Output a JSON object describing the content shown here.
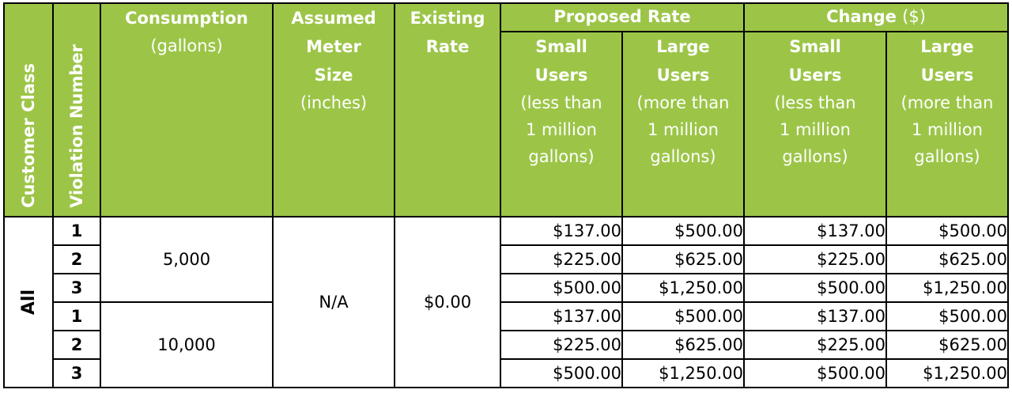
{
  "header": {
    "customer_class": "Customer Class",
    "violation_number": "Violation Number",
    "consumption": "Consumption",
    "consumption_unit": "(gallons)",
    "meter_size_line1": "Assumed",
    "meter_size_line2": "Meter",
    "meter_size_line3": "Size",
    "meter_size_unit": "(inches)",
    "existing_rate_line1": "Existing",
    "existing_rate_line2": "Rate",
    "proposed_rate": "Proposed Rate",
    "change_label": "Change",
    "change_unit": "($)",
    "small_users_line1": "Small",
    "small_users_line2": "Users",
    "small_users_desc1": "(less than",
    "small_users_desc2": "1 million",
    "small_users_desc3": "gallons)",
    "large_users_line1": "Large",
    "large_users_line2": "Users",
    "large_users_desc1": "(more than",
    "large_users_desc2": "1 million",
    "large_users_desc3": "gallons)"
  },
  "body": {
    "customer_class": "All",
    "meter_size": "N/A",
    "existing_rate": "$0.00",
    "groups": [
      {
        "consumption": "5,000",
        "rows": [
          {
            "violation": "1",
            "proposed_small": "$137.00",
            "proposed_large": "$500.00",
            "change_small": "$137.00",
            "change_large": "$500.00"
          },
          {
            "violation": "2",
            "proposed_small": "$225.00",
            "proposed_large": "$625.00",
            "change_small": "$225.00",
            "change_large": "$625.00"
          },
          {
            "violation": "3",
            "proposed_small": "$500.00",
            "proposed_large": "$1,250.00",
            "change_small": "$500.00",
            "change_large": "$1,250.00"
          }
        ]
      },
      {
        "consumption": "10,000",
        "rows": [
          {
            "violation": "1",
            "proposed_small": "$137.00",
            "proposed_large": "$500.00",
            "change_small": "$137.00",
            "change_large": "$500.00"
          },
          {
            "violation": "2",
            "proposed_small": "$225.00",
            "proposed_large": "$625.00",
            "change_small": "$225.00",
            "change_large": "$625.00"
          },
          {
            "violation": "3",
            "proposed_small": "$500.00",
            "proposed_large": "$1,250.00",
            "change_small": "$500.00",
            "change_large": "$1,250.00"
          }
        ]
      }
    ]
  },
  "colors": {
    "header_bg": "#9cc548",
    "header_text": "#ffffff",
    "border": "#000000"
  }
}
